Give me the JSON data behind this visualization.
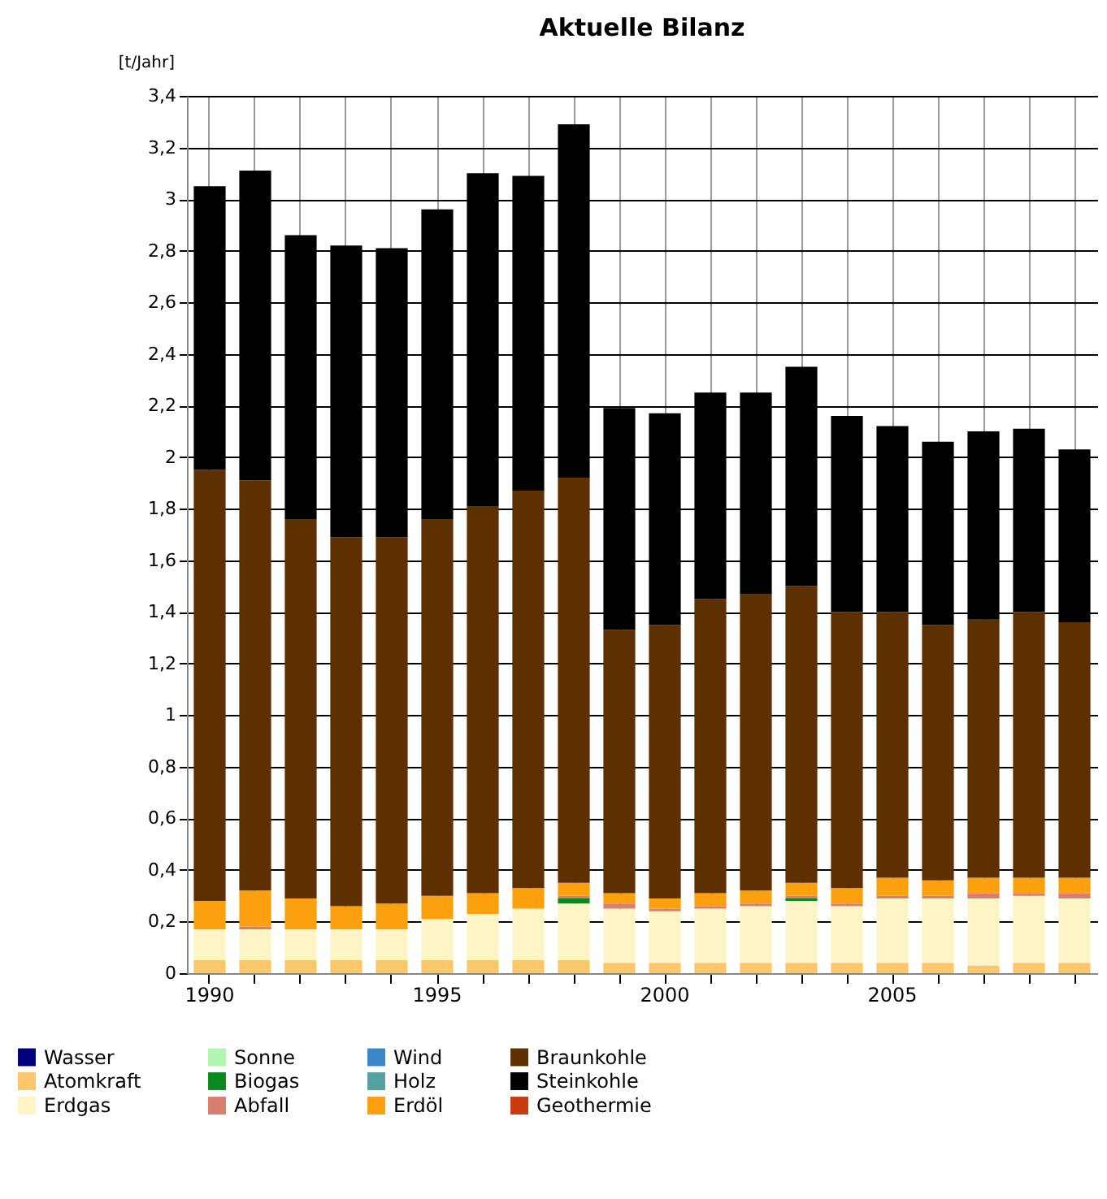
{
  "chart_data": {
    "type": "bar",
    "title": "Aktuelle Bilanz",
    "ylabel": "[t/Jahr]",
    "stacked": true,
    "grid": true,
    "legend": "bottom",
    "categories": [
      "1990",
      null,
      null,
      null,
      null,
      "1995",
      null,
      null,
      null,
      null,
      "2000",
      null,
      null,
      null,
      null,
      "2005",
      null,
      null,
      null,
      null
    ],
    "ylim": [
      0,
      3.4
    ],
    "yticks": [
      0,
      {
        "value": 0.2,
        "label": "0,2"
      },
      {
        "value": 0.4,
        "label": "0,4"
      },
      {
        "value": 0.6,
        "label": "0,6"
      },
      {
        "value": 0.8,
        "label": "0,8"
      },
      1,
      {
        "value": 1.2,
        "label": "1,2"
      },
      {
        "value": 1.4,
        "label": "1,4"
      },
      {
        "value": 1.6,
        "label": "1,6"
      },
      {
        "value": 1.8,
        "label": "1,8"
      },
      2,
      {
        "value": 2.2,
        "label": "2,2"
      },
      {
        "value": 2.4,
        "label": "2,4"
      },
      {
        "value": 2.6,
        "label": "2,6"
      },
      {
        "value": 2.8,
        "label": "2,8"
      },
      3,
      {
        "value": 3.2,
        "label": "3,2"
      },
      {
        "value": 3.4,
        "label": "3,4"
      }
    ],
    "series": [
      {
        "name": "Wasser",
        "color": "#00007f",
        "values": [
          0,
          0,
          0,
          0,
          0,
          0,
          0,
          0,
          0,
          0,
          0,
          0,
          0,
          0,
          0,
          0,
          0,
          0,
          0,
          0
        ]
      },
      {
        "name": "Atomkraft",
        "color": "#fcc66a",
        "values": [
          0.05,
          0.05,
          0.05,
          0.05,
          0.05,
          0.05,
          0.05,
          0.05,
          0.05,
          0.04,
          0.04,
          0.04,
          0.04,
          0.04,
          0.04,
          0.04,
          0.04,
          0.03,
          0.04,
          0.04
        ]
      },
      {
        "name": "Erdgas",
        "color": "#fdf5c6",
        "values": [
          0.12,
          0.12,
          0.12,
          0.12,
          0.12,
          0.16,
          0.18,
          0.2,
          0.22,
          0.21,
          0.2,
          0.21,
          0.22,
          0.24,
          0.22,
          0.25,
          0.25,
          0.26,
          0.26,
          0.25
        ]
      },
      {
        "name": "Sonne",
        "color": "#b0f5b0",
        "values": [
          0,
          0,
          0,
          0,
          0,
          0,
          0,
          0,
          0,
          0,
          0,
          0,
          0,
          0,
          0,
          0,
          0,
          0,
          0,
          0
        ]
      },
      {
        "name": "Biogas",
        "color": "#0a8a1e",
        "values": [
          0,
          0,
          0,
          0,
          0,
          0,
          0,
          0,
          0.02,
          0,
          0,
          0,
          0,
          0.01,
          0,
          0,
          0,
          0,
          0,
          0
        ]
      },
      {
        "name": "Abfall",
        "color": "#d88070",
        "values": [
          0,
          0.01,
          0,
          0,
          0,
          0,
          0,
          0,
          0.01,
          0.02,
          0.01,
          0.01,
          0.01,
          0.01,
          0.01,
          0.01,
          0.01,
          0.02,
          0.01,
          0.02
        ]
      },
      {
        "name": "Wind",
        "color": "#3a87c8",
        "values": [
          0,
          0,
          0,
          0,
          0,
          0,
          0,
          0,
          0,
          0,
          0,
          0,
          0,
          0,
          0,
          0,
          0,
          0,
          0,
          0
        ]
      },
      {
        "name": "Holz",
        "color": "#55a0a0",
        "values": [
          0,
          0,
          0,
          0,
          0,
          0,
          0,
          0,
          0,
          0,
          0,
          0,
          0,
          0,
          0,
          0,
          0,
          0,
          0,
          0
        ]
      },
      {
        "name": "Erdöl",
        "color": "#fca010",
        "values": [
          0.11,
          0.14,
          0.12,
          0.09,
          0.1,
          0.09,
          0.08,
          0.08,
          0.05,
          0.04,
          0.04,
          0.05,
          0.05,
          0.05,
          0.06,
          0.07,
          0.06,
          0.06,
          0.06,
          0.06
        ]
      },
      {
        "name": "Braunkohle",
        "color": "#5e3000",
        "values": [
          1.67,
          1.59,
          1.47,
          1.43,
          1.42,
          1.46,
          1.5,
          1.54,
          1.57,
          1.02,
          1.06,
          1.14,
          1.15,
          1.15,
          1.07,
          1.03,
          0.99,
          1.0,
          1.03,
          0.99
        ]
      },
      {
        "name": "Steinkohle",
        "color": "#000000",
        "values": [
          1.1,
          1.2,
          1.1,
          1.13,
          1.12,
          1.2,
          1.29,
          1.22,
          1.37,
          0.86,
          0.82,
          0.8,
          0.78,
          0.85,
          0.76,
          0.72,
          0.71,
          0.73,
          0.71,
          0.67
        ]
      },
      {
        "name": "Geothermie",
        "color": "#c83c10",
        "values": [
          0,
          0,
          0,
          0,
          0,
          0,
          0,
          0,
          0,
          0,
          0,
          0,
          0,
          0,
          0,
          0,
          0,
          0,
          0,
          0
        ]
      }
    ]
  }
}
